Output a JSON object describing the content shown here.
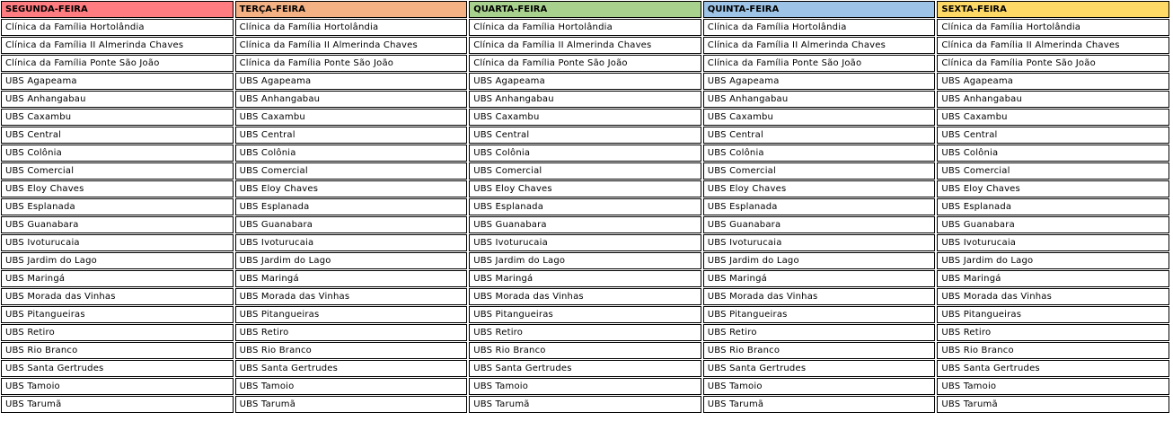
{
  "columns": [
    {
      "header": "SEGUNDA-FEIRA",
      "color": "#FF7C80"
    },
    {
      "header": "TERÇA-FEIRA",
      "color": "#F4B183"
    },
    {
      "header": "QUARTA-FEIRA",
      "color": "#A9D18E"
    },
    {
      "header": "QUINTA-FEIRA",
      "color": "#9DC3E6"
    },
    {
      "header": "SEXTA-FEIRA",
      "color": "#FFD966"
    }
  ],
  "rows": [
    [
      "Clínica da Família Hortolândia",
      "Clínica da Família Hortolândia",
      "Clínica da Família Hortolândia",
      "Clínica da Família Hortolândia",
      "Clínica da Família Hortolândia"
    ],
    [
      "Clínica da Família II Almerinda Chaves",
      "Clínica da Família II Almerinda Chaves",
      "Clínica da Família II Almerinda Chaves",
      "Clínica da Família II Almerinda Chaves",
      "Clínica da Família II Almerinda Chaves"
    ],
    [
      "Clínica da Família Ponte São João",
      "Clínica da Família Ponte São João",
      "Clínica da Família Ponte São João",
      "Clínica da Família Ponte São João",
      "Clínica da Família Ponte São João"
    ],
    [
      "UBS Agapeama",
      "UBS Agapeama",
      "UBS Agapeama",
      "UBS Agapeama",
      "UBS Agapeama"
    ],
    [
      "UBS Anhangabau",
      "UBS Anhangabau",
      "UBS Anhangabau",
      "UBS Anhangabau",
      "UBS Anhangabau"
    ],
    [
      "UBS Caxambu",
      "UBS Caxambu",
      "UBS Caxambu",
      "UBS Caxambu",
      "UBS Caxambu"
    ],
    [
      "UBS Central",
      "UBS Central",
      "UBS Central",
      "UBS Central",
      "UBS Central"
    ],
    [
      "UBS Colônia",
      "UBS Colônia",
      "UBS Colônia",
      "UBS Colônia",
      "UBS Colônia"
    ],
    [
      "UBS Comercial",
      "UBS Comercial",
      "UBS Comercial",
      "UBS Comercial",
      "UBS Comercial"
    ],
    [
      "UBS Eloy Chaves",
      "UBS Eloy Chaves",
      "UBS Eloy Chaves",
      "UBS Eloy Chaves",
      "UBS Eloy Chaves"
    ],
    [
      "UBS Esplanada",
      "UBS Esplanada",
      "UBS Esplanada",
      "UBS Esplanada",
      "UBS Esplanada"
    ],
    [
      "UBS Guanabara",
      "UBS Guanabara",
      "UBS Guanabara",
      "UBS Guanabara",
      "UBS Guanabara"
    ],
    [
      "UBS Ivoturucaia",
      "UBS Ivoturucaia",
      "UBS Ivoturucaia",
      "UBS Ivoturucaia",
      "UBS Ivoturucaia"
    ],
    [
      "UBS Jardim do Lago",
      "UBS Jardim do Lago",
      "UBS Jardim do Lago",
      "UBS Jardim do Lago",
      "UBS Jardim do Lago"
    ],
    [
      "UBS Maringá",
      "UBS Maringá",
      "UBS Maringá",
      "UBS Maringá",
      "UBS Maringá"
    ],
    [
      "UBS Morada das Vinhas",
      "UBS Morada das Vinhas",
      "UBS Morada das Vinhas",
      "UBS Morada das Vinhas",
      "UBS Morada das Vinhas"
    ],
    [
      "UBS Pitangueiras",
      "UBS Pitangueiras",
      "UBS Pitangueiras",
      "UBS Pitangueiras",
      "UBS Pitangueiras"
    ],
    [
      "UBS Retiro",
      "UBS Retiro",
      "UBS Retiro",
      "UBS Retiro",
      "UBS Retiro"
    ],
    [
      "UBS Rio Branco",
      "UBS Rio Branco",
      "UBS Rio Branco",
      "UBS Rio Branco",
      "UBS Rio Branco"
    ],
    [
      "UBS Santa Gertrudes",
      "UBS Santa Gertrudes",
      "UBS Santa Gertrudes",
      "UBS Santa Gertrudes",
      "UBS Santa Gertrudes"
    ],
    [
      "UBS Tamoio",
      "UBS Tamoio",
      "UBS Tamoio",
      "UBS Tamoio",
      "UBS Tamoio"
    ],
    [
      "UBS Tarumã",
      "UBS Tarumã",
      "UBS Tarumã",
      "UBS Tarumã",
      "UBS Tarumã"
    ]
  ]
}
